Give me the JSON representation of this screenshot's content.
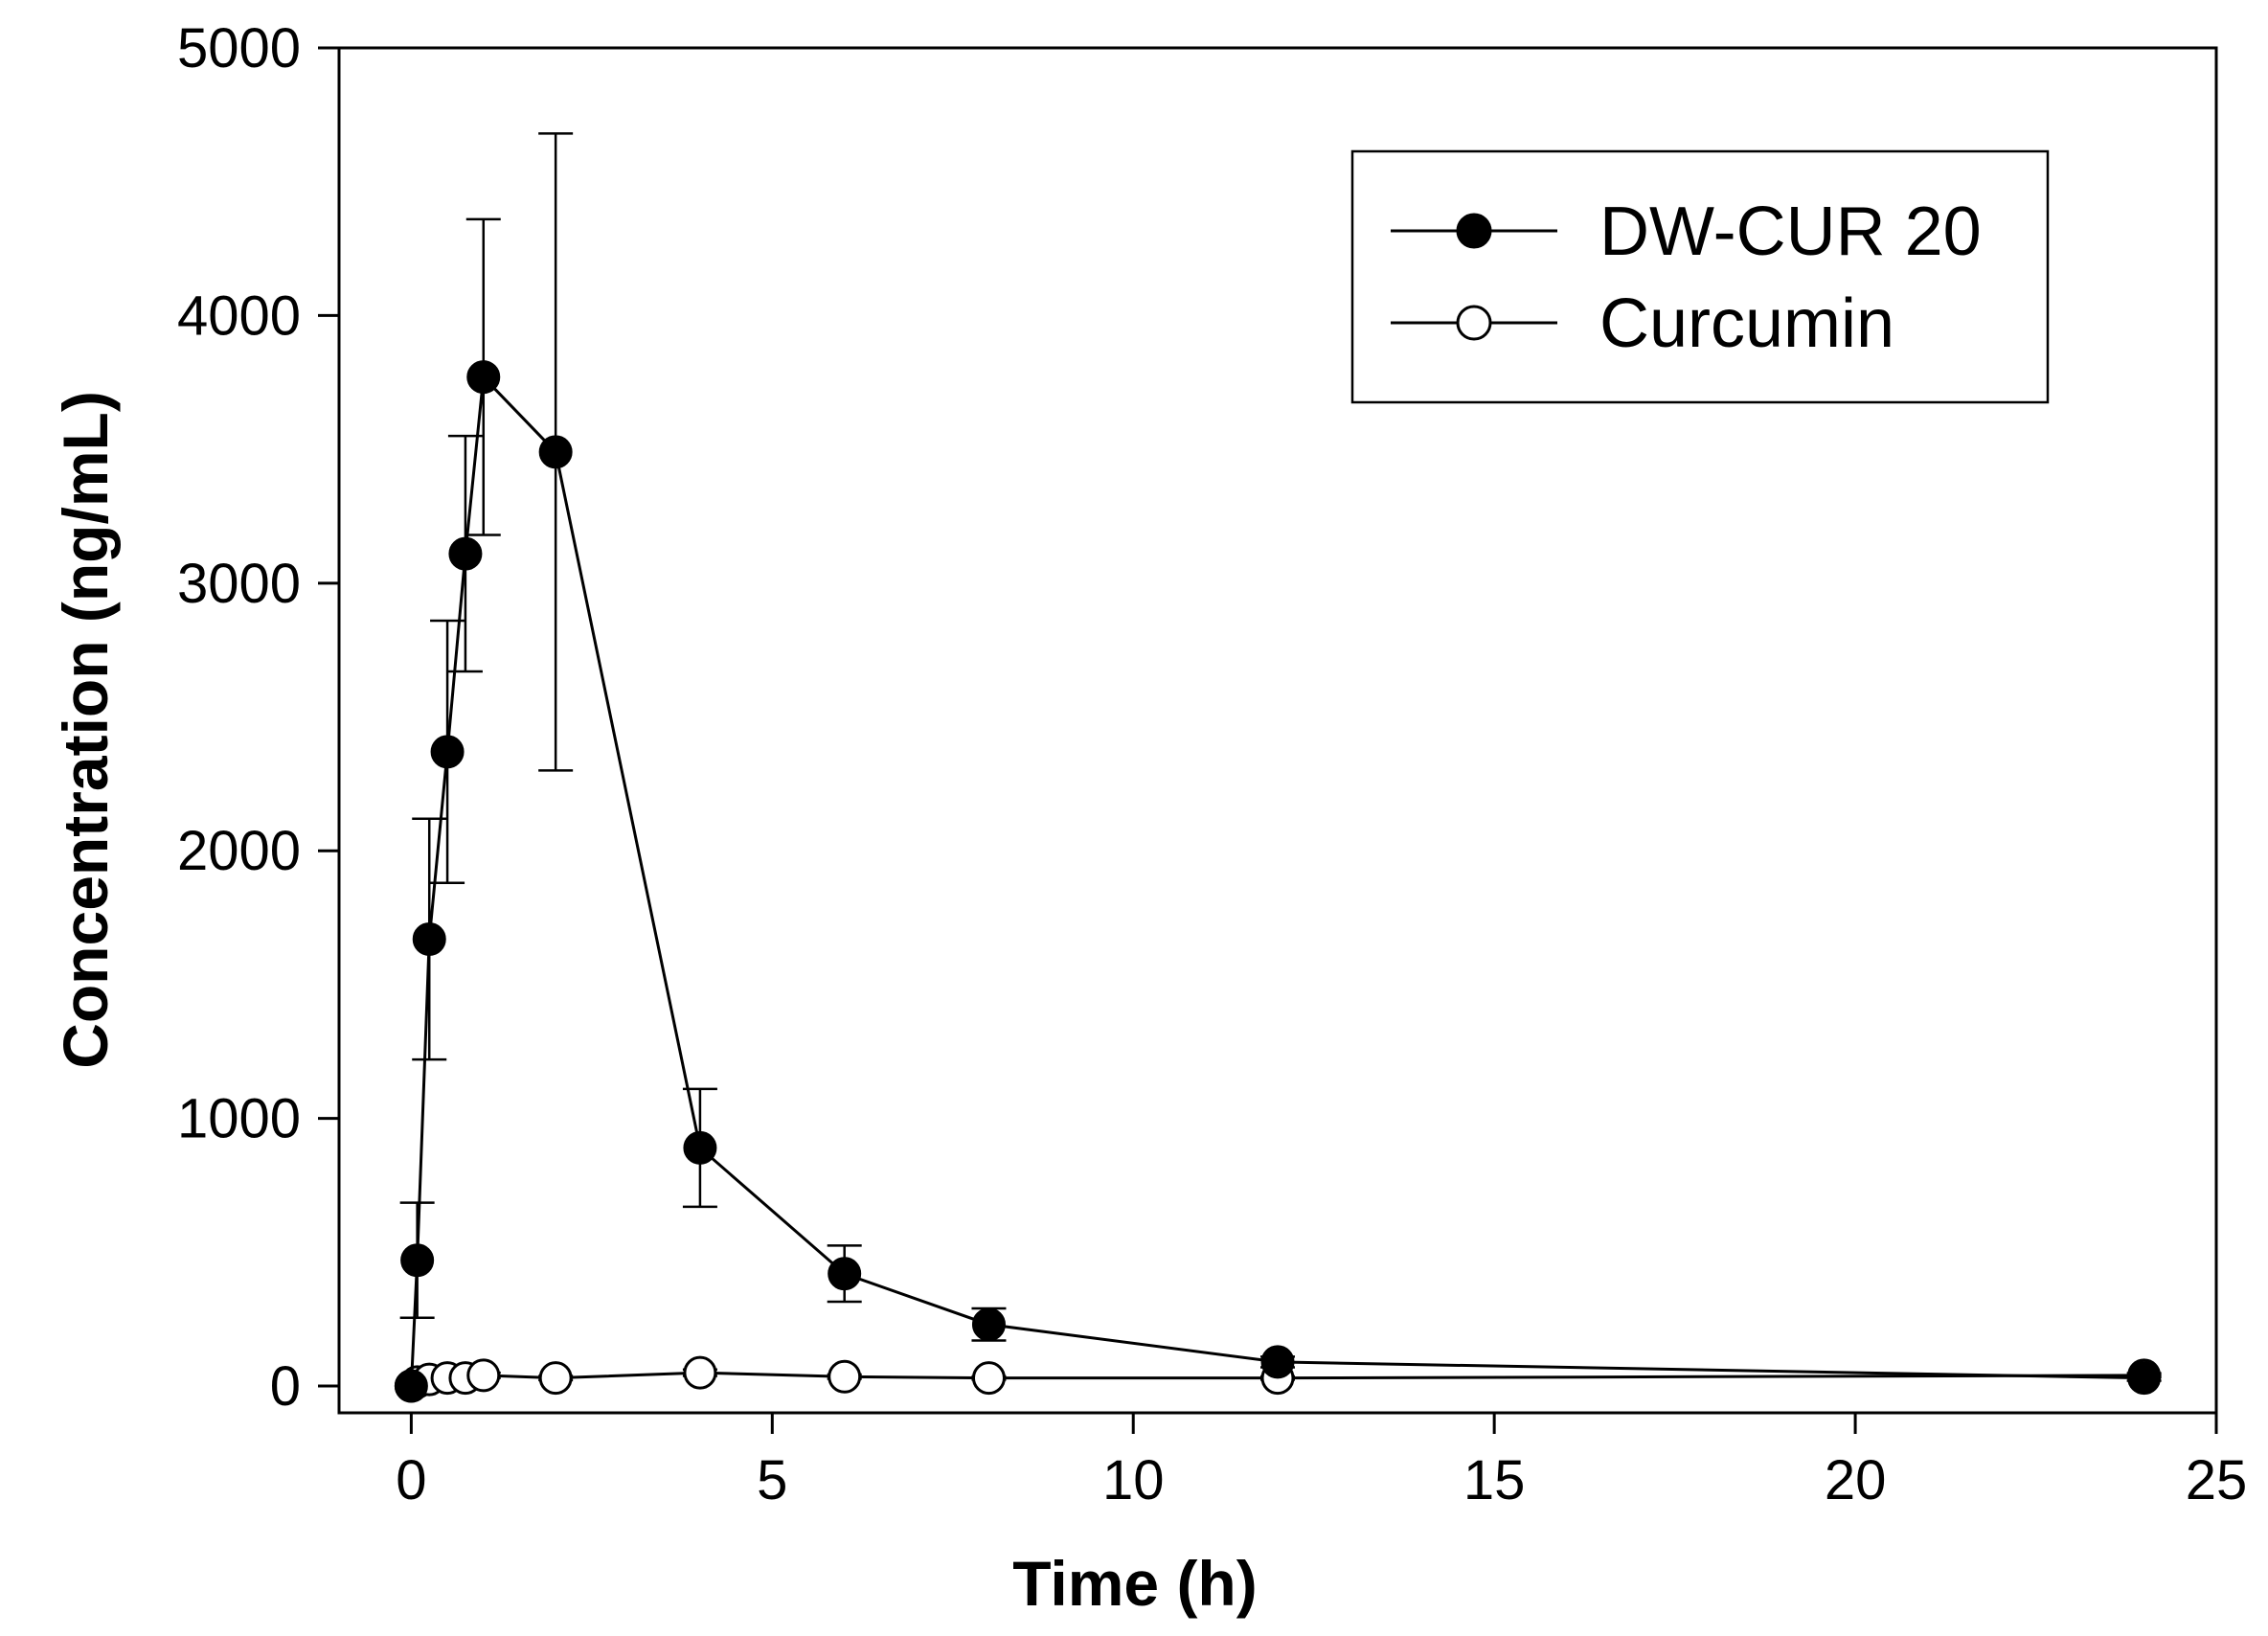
{
  "chart_data": {
    "type": "line",
    "xlabel": "Time (h)",
    "ylabel": "Concentration (ng/mL)",
    "xlim": [
      -1,
      25
    ],
    "ylim": [
      -100,
      5000
    ],
    "xticks": [
      0,
      5,
      10,
      15,
      20,
      25
    ],
    "yticks": [
      0,
      1000,
      2000,
      3000,
      4000,
      5000
    ],
    "xtick_labels": [
      "0",
      "5",
      "10",
      "15",
      "20",
      "25"
    ],
    "ytick_labels": [
      "0",
      "1000",
      "2000",
      "3000",
      "4000",
      "5000"
    ],
    "grid": false,
    "legend_position": "top-right",
    "series": [
      {
        "name": "DW-CUR 20",
        "marker": "filled-circle",
        "color": "#000000",
        "x": [
          0,
          0.083,
          0.25,
          0.5,
          0.75,
          1,
          2,
          4,
          6,
          8,
          12,
          24
        ],
        "y": [
          0,
          470,
          1670,
          2370,
          3110,
          3770,
          3490,
          890,
          420,
          230,
          90,
          30
        ],
        "error": [
          0,
          215,
          450,
          490,
          440,
          590,
          1190,
          220,
          105,
          60,
          20,
          10
        ]
      },
      {
        "name": "Curcumin",
        "marker": "open-circle",
        "color": "#000000",
        "x": [
          0,
          0.083,
          0.25,
          0.5,
          0.75,
          1,
          2,
          4,
          6,
          8,
          12,
          24
        ],
        "y": [
          0,
          15,
          25,
          30,
          30,
          40,
          30,
          50,
          35,
          30,
          30,
          40
        ],
        "error": [
          0,
          5,
          5,
          8,
          8,
          10,
          8,
          12,
          8,
          6,
          6,
          8
        ]
      }
    ]
  }
}
